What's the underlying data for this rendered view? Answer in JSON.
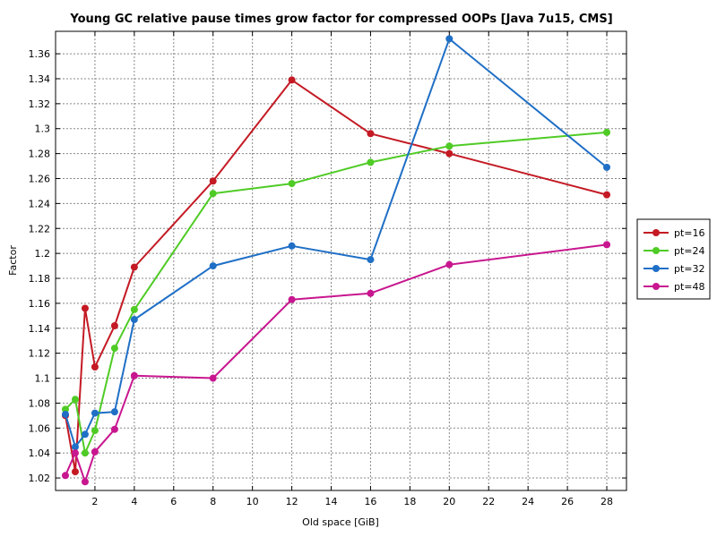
{
  "chart_data": {
    "type": "line",
    "title": "Young GC relative pause times grow factor for compressed OOPs [Java 7u15, CMS]",
    "xlabel": "Old space [GiB]",
    "ylabel": "Factor",
    "xlim": [
      0,
      29
    ],
    "ylim": [
      1.01,
      1.378
    ],
    "xticks": [
      2,
      4,
      6,
      8,
      10,
      12,
      14,
      16,
      18,
      20,
      22,
      24,
      26,
      28
    ],
    "xtick_labels": [
      "2",
      "4",
      "6",
      "8",
      "10",
      "12",
      "14",
      "16",
      "18",
      "20",
      "22",
      "24",
      "26",
      "28"
    ],
    "yticks": [
      1.02,
      1.04,
      1.06,
      1.08,
      1.1,
      1.12,
      1.14,
      1.16,
      1.18,
      1.2,
      1.22,
      1.24,
      1.26,
      1.28,
      1.3,
      1.32,
      1.34,
      1.36
    ],
    "ytick_labels": [
      "1.02",
      "1.04",
      "1.06",
      "1.08",
      "1.1",
      "1.12",
      "1.14",
      "1.16",
      "1.18",
      "1.2",
      "1.22",
      "1.24",
      "1.26",
      "1.28",
      "1.3",
      "1.32",
      "1.34",
      "1.36"
    ],
    "grid": true,
    "legend_position": "right",
    "series": [
      {
        "name": "pt=16",
        "color": "#c41a24",
        "points": [
          [
            0.5,
            1.07
          ],
          [
            1,
            1.025
          ],
          [
            1.5,
            1.156
          ],
          [
            2,
            1.109
          ],
          [
            3,
            1.142
          ],
          [
            4,
            1.189
          ],
          [
            8,
            1.258
          ],
          [
            12,
            1.339
          ],
          [
            16,
            1.296
          ],
          [
            20,
            1.28
          ],
          [
            28,
            1.247
          ]
        ]
      },
      {
        "name": "pt=24",
        "color": "#4fcb25",
        "points": [
          [
            0.5,
            1.075
          ],
          [
            1,
            1.083
          ],
          [
            1.5,
            1.04
          ],
          [
            2,
            1.058
          ],
          [
            3,
            1.124
          ],
          [
            4,
            1.155
          ],
          [
            8,
            1.248
          ],
          [
            12,
            1.256
          ],
          [
            16,
            1.273
          ],
          [
            20,
            1.286
          ],
          [
            28,
            1.297
          ]
        ]
      },
      {
        "name": "pt=32",
        "color": "#1f6fc6",
        "points": [
          [
            0.5,
            1.071
          ],
          [
            1,
            1.045
          ],
          [
            1.5,
            1.055
          ],
          [
            2,
            1.072
          ],
          [
            3,
            1.073
          ],
          [
            4,
            1.147
          ],
          [
            8,
            1.19
          ],
          [
            12,
            1.206
          ],
          [
            16,
            1.195
          ],
          [
            20,
            1.372
          ],
          [
            28,
            1.269
          ]
        ]
      },
      {
        "name": "pt=48",
        "color": "#c8168f",
        "points": [
          [
            0.5,
            1.022
          ],
          [
            1,
            1.04
          ],
          [
            1.5,
            1.017
          ],
          [
            2,
            1.041
          ],
          [
            3,
            1.059
          ],
          [
            4,
            1.102
          ],
          [
            8,
            1.1
          ],
          [
            12,
            1.163
          ],
          [
            16,
            1.168
          ],
          [
            20,
            1.191
          ],
          [
            28,
            1.207
          ]
        ]
      }
    ]
  }
}
